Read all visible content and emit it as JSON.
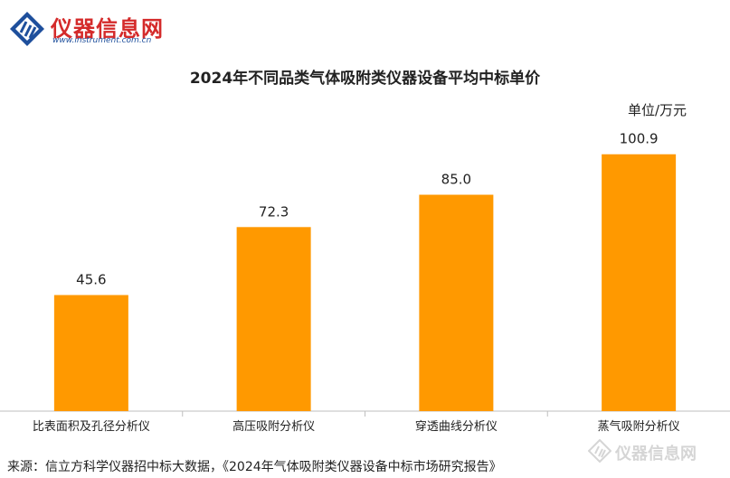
{
  "logo": {
    "name_cn": "仪器信息网",
    "url": "www.instrument.com.cn"
  },
  "watermark": {
    "text": "仪器信息网"
  },
  "source": "来源：信立方科学仪器招中标大数据，《2024年气体吸附类仪器设备中标市场研究报告》",
  "chart_data": {
    "type": "bar",
    "title": "2024年不同品类气体吸附类仪器设备平均中标单价",
    "unit": "单位/万元",
    "categories": [
      "比表面积及孔径分析仪",
      "高压吸附分析仪",
      "穿透曲线分析仪",
      "蒸气吸附分析仪"
    ],
    "values": [
      45.6,
      72.3,
      85.0,
      100.9
    ],
    "value_labels": [
      "45.6",
      "72.3",
      "85.0",
      "100.9"
    ],
    "color": "#ff9900",
    "ylim": [
      0,
      115
    ],
    "grid": false,
    "legend": "none"
  }
}
